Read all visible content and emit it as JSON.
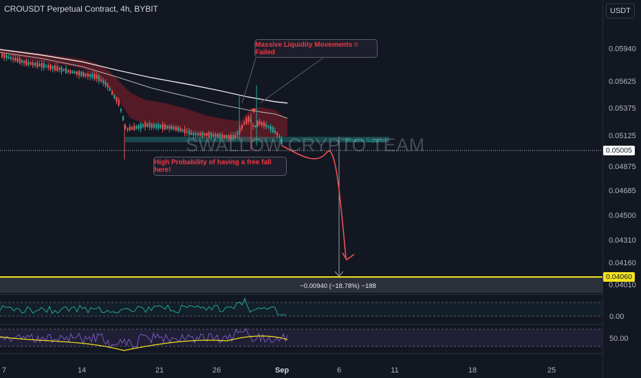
{
  "header": {
    "title": "CROUSDT Perpetual Contract, 4h, BYBIT",
    "currency_button": "USDT"
  },
  "annotations": {
    "liquidity_note": "Massive Liquidity Movements = Failed",
    "freefall_note": "High Probability of having a free fall here!",
    "broken_support_label": "Broken Support",
    "watermark": "SWALLOW CRYPTO TEAM",
    "measure_label": "−0.00940 (−18.78%) −188"
  },
  "price_axis": {
    "ticks": [
      "0.05940",
      "0.05625",
      "0.05375",
      "0.05125",
      "0.04875",
      "0.04685",
      "0.04500",
      "0.04310",
      "0.04160",
      "0.04010"
    ],
    "current_price": "0.05005",
    "target_price": "0.04060"
  },
  "indicator_axes": {
    "osc1_label": "0.00",
    "osc2_label": "50.00"
  },
  "time_axis": {
    "labels": [
      "7",
      "14",
      "21",
      "26",
      "Sep",
      "6",
      "11",
      "18",
      "25"
    ]
  },
  "colors": {
    "up": "#26a69a",
    "down": "#ef5350",
    "target": "#f5e31f",
    "cloud": "#7a1f27",
    "ema_white": "#e8e8e8",
    "ema_gray": "#b4b4b4",
    "projection": "#ef5350"
  },
  "chart_data": {
    "type": "candlestick",
    "title": "CROUSDT Perpetual Contract, 4h, BYBIT",
    "y_ticks": [
      0.0594,
      0.05625,
      0.05375,
      0.05125,
      0.04875,
      0.04685,
      0.045,
      0.0431,
      0.0416,
      0.0401
    ],
    "x_ticks": [
      "7",
      "14",
      "21",
      "26",
      "Sep",
      "6",
      "11",
      "18",
      "25"
    ],
    "current_price": 0.05005,
    "target_level": 0.0406,
    "measured_move": {
      "change": -0.0094,
      "percent": -18.78,
      "ticks": -188
    },
    "ohlc_approx": [
      {
        "date": "Aug 7",
        "close": 0.058
      },
      {
        "date": "Aug 10",
        "close": 0.0578
      },
      {
        "date": "Aug 14",
        "close": 0.0574
      },
      {
        "date": "Aug 17",
        "close": 0.0552
      },
      {
        "date": "Aug 19",
        "close": 0.0518
      },
      {
        "date": "Aug 21",
        "close": 0.0523
      },
      {
        "date": "Aug 24",
        "close": 0.0517
      },
      {
        "date": "Aug 26",
        "close": 0.0513
      },
      {
        "date": "Aug 28",
        "close": 0.052
      },
      {
        "date": "Aug 29",
        "high": 0.0563,
        "close": 0.0528
      },
      {
        "date": "Aug 31",
        "close": 0.0514
      },
      {
        "date": "Sep 1",
        "close": 0.05005
      }
    ],
    "series": [
      {
        "values": [
          0.059,
          0.0586,
          0.0578,
          0.0566,
          0.0556,
          0.055,
          0.0545
        ]
      },
      {
        "values": [
          0.0588,
          0.0583,
          0.0572,
          0.0556,
          0.0544,
          0.0536,
          0.053
        ]
      }
    ]
  }
}
